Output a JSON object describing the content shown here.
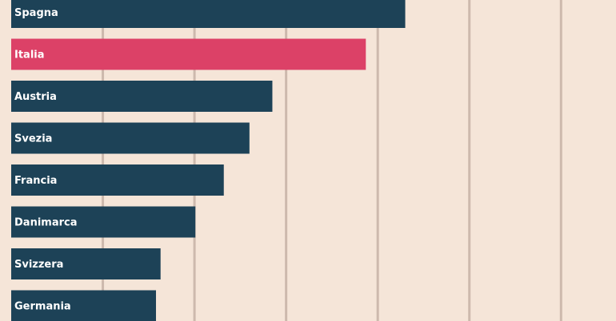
{
  "chart_data": {
    "type": "bar",
    "orientation": "horizontal",
    "categories": [
      "Spagna",
      "Italia",
      "Austria",
      "Svezia",
      "Francia",
      "Danimarca",
      "Svizzera",
      "Germania"
    ],
    "values": [
      43,
      38.7,
      28.5,
      26,
      23.2,
      20.1,
      16.3,
      15.8
    ],
    "highlight": "Italia",
    "xlim": [
      0,
      66
    ],
    "gridlines": [
      10,
      20,
      30,
      40,
      50,
      60
    ],
    "grid": true,
    "colors": {
      "default": "#1d4257",
      "highlight": "#dc4167",
      "background": "#f5e5d8",
      "grid": "#cdb9ad"
    }
  }
}
